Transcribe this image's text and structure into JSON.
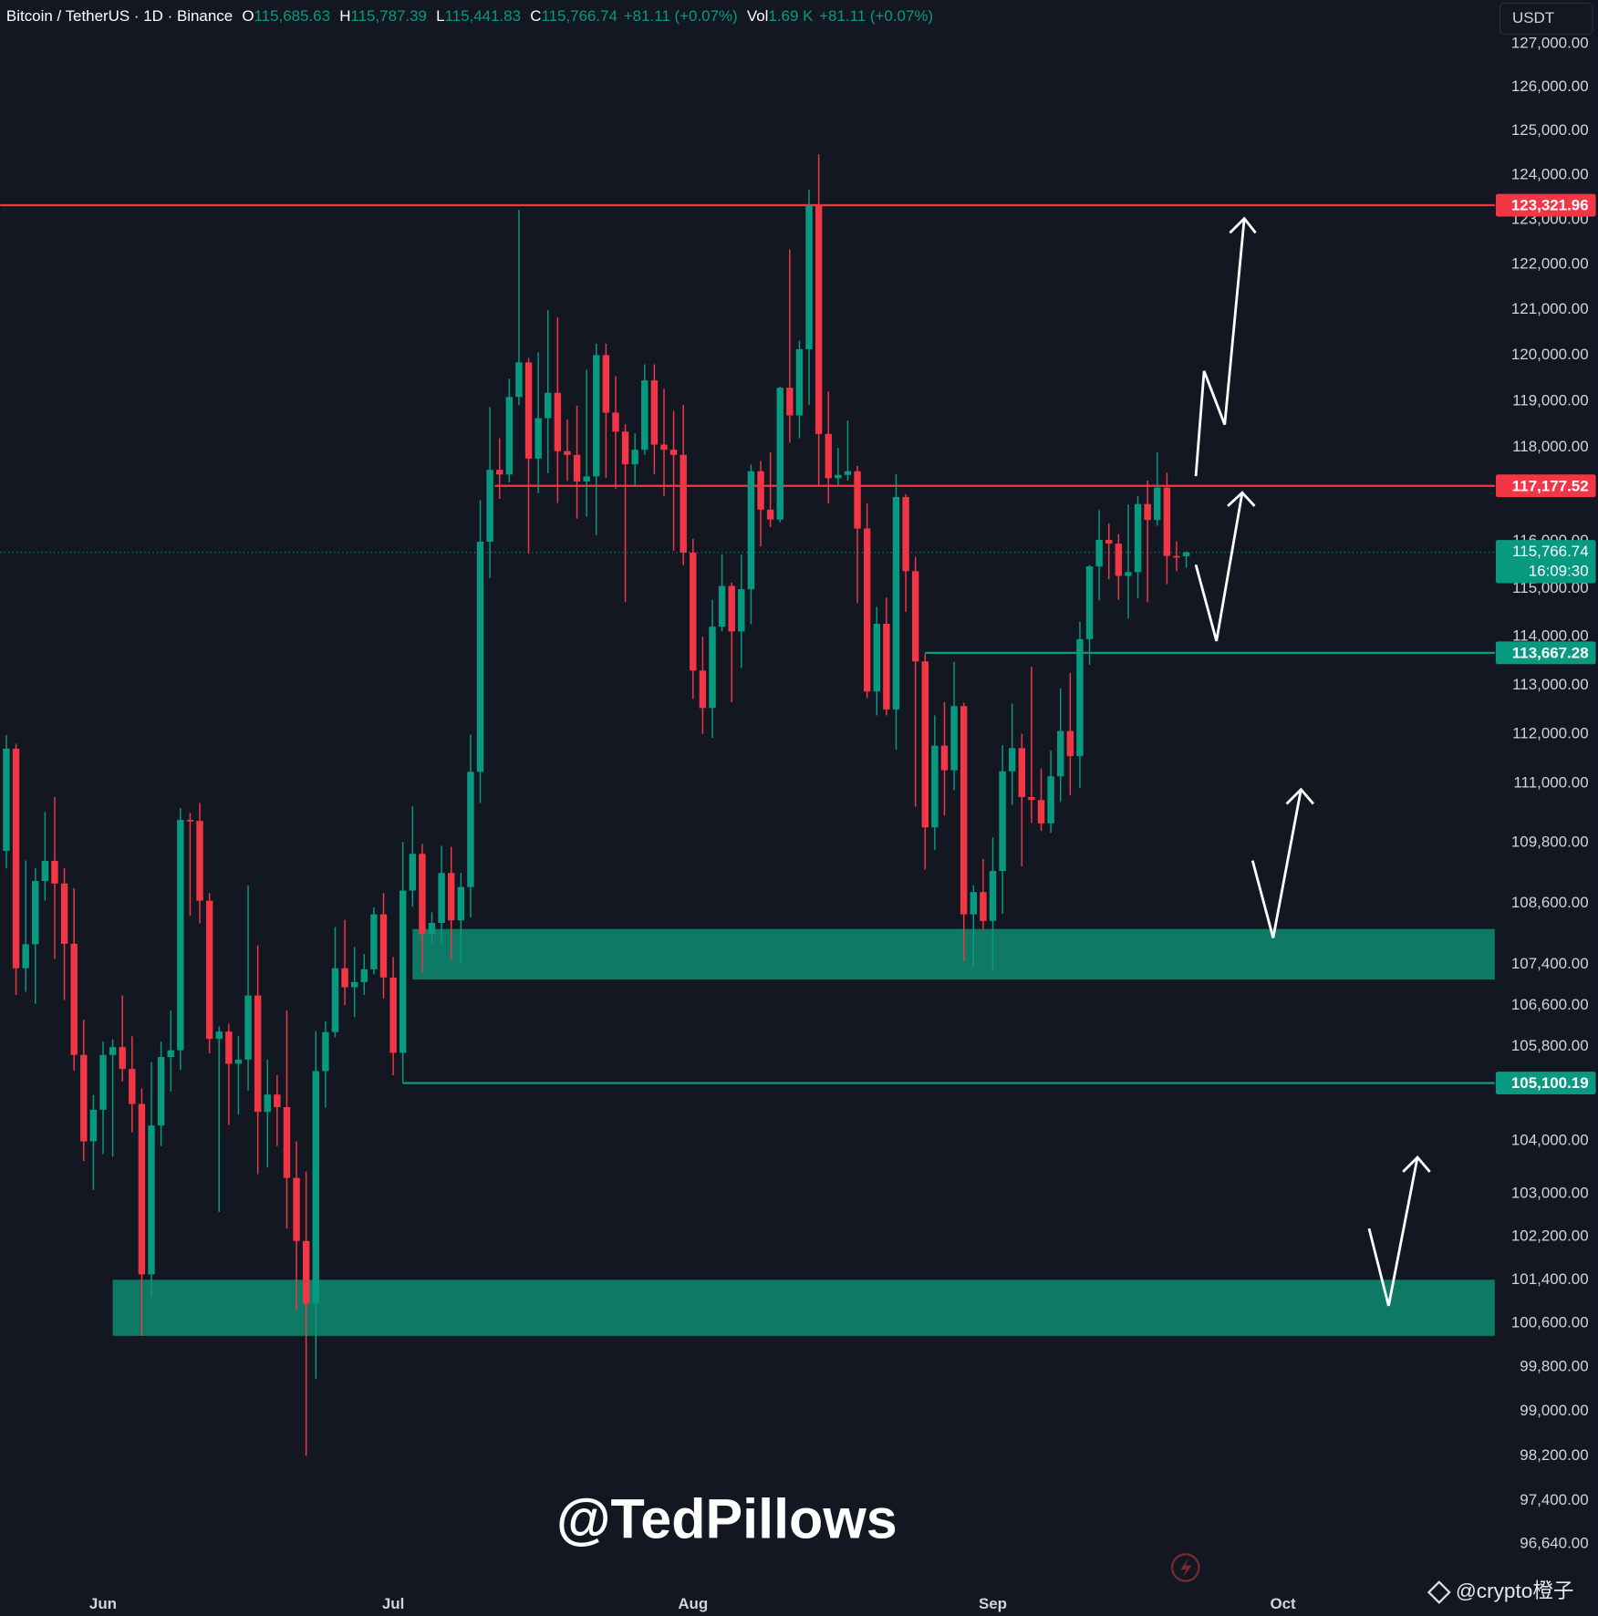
{
  "chart_data": {
    "type": "candlestick",
    "title": "Bitcoin / TetherUS · 1D · Binance",
    "legend": [
      {
        "key": "O",
        "text": "115,685.63"
      },
      {
        "key": "H",
        "text": "115,787.39"
      },
      {
        "key": "L",
        "text": "115,441.83"
      },
      {
        "key": "C",
        "text": "115,766.74"
      }
    ],
    "change": "+81.11 (+0.07%)",
    "volume": {
      "key": "Vol",
      "text": "1.69 K",
      "change": "+81.11 (+0.07%)"
    },
    "currency": "USDT",
    "up_color": "#089981",
    "down_color": "#f23645",
    "log_scale": true,
    "grid": false,
    "open": [
      109640,
      111700,
      107320,
      107790,
      109040,
      109440,
      108990,
      107800,
      105640,
      103990,
      104590,
      105640,
      105790,
      105370,
      104700,
      101500,
      104290,
      105600,
      105730,
      110260,
      110240,
      108650,
      105950,
      106090,
      105470,
      105550,
      106790,
      104550,
      104880,
      104640,
      103300,
      102120,
      100960,
      105330,
      106080,
      107320,
      106950,
      107050,
      107300,
      108380,
      107140,
      105680,
      108850,
      109580,
      107990,
      108210,
      109200,
      108260,
      108920,
      111230,
      115990,
      117520,
      117420,
      119090,
      119840,
      117760,
      118630,
      119180,
      117920,
      117840,
      117270,
      117380,
      120000,
      118750,
      118340,
      117640,
      117950,
      119450,
      118060,
      117950,
      117840,
      115760,
      113300,
      112530,
      114210,
      115060,
      114110,
      114990,
      117490,
      116670,
      116460,
      119290,
      118690,
      120130,
      123310,
      118290,
      117340,
      117410,
      117490,
      116270,
      112870,
      114270,
      112500,
      116940,
      115370,
      113490,
      110110,
      111760,
      111260,
      112570,
      108380,
      108820,
      108250,
      109240,
      111240,
      111710,
      110720,
      110660,
      110190,
      111140,
      112060,
      111550,
      113950,
      115470,
      116030,
      115950,
      115270,
      115350,
      116790,
      116450,
      117140,
      115690,
      115685.63
    ],
    "high": [
      111980,
      111800,
      109450,
      109300,
      110420,
      110720,
      109300,
      108900,
      106320,
      104870,
      105900,
      105940,
      106790,
      106000,
      105000,
      105500,
      105900,
      106500,
      110500,
      110400,
      110600,
      108800,
      106190,
      106240,
      106000,
      108950,
      107770,
      105550,
      105250,
      106500,
      103990,
      103420,
      106100,
      106290,
      108130,
      108270,
      107740,
      107600,
      108520,
      108800,
      107540,
      109820,
      110530,
      109780,
      108420,
      109740,
      109720,
      109200,
      111990,
      116870,
      118870,
      118200,
      119490,
      123220,
      119940,
      120060,
      120990,
      120830,
      118600,
      118900,
      119680,
      120250,
      120250,
      119540,
      118500,
      118300,
      119800,
      119800,
      119270,
      118790,
      118920,
      116050,
      114000,
      114770,
      115720,
      115130,
      115720,
      117630,
      117710,
      117900,
      119310,
      122330,
      120320,
      123670,
      124470,
      119210,
      117990,
      118580,
      117600,
      116800,
      114620,
      114820,
      117420,
      117000,
      115670,
      113650,
      112380,
      112650,
      113480,
      112640,
      108950,
      109480,
      109910,
      111770,
      112620,
      112000,
      113380,
      111300,
      111660,
      112930,
      113250,
      114310,
      115500,
      116660,
      116380,
      116150,
      116780,
      116960,
      117290,
      117900,
      117460,
      116000,
      115787.39
    ],
    "low": [
      109290,
      106800,
      106860,
      106630,
      108650,
      107500,
      106700,
      105340,
      103620,
      103070,
      103750,
      103700,
      105130,
      104160,
      100370,
      101100,
      103900,
      104940,
      105350,
      108350,
      108200,
      105670,
      102660,
      104300,
      104500,
      104960,
      103370,
      103500,
      103900,
      102350,
      100840,
      98200,
      99590,
      104630,
      105980,
      106600,
      106370,
      106800,
      107200,
      106730,
      105250,
      105100,
      108530,
      107250,
      107800,
      107800,
      107500,
      107420,
      108320,
      110600,
      115220,
      116900,
      117250,
      118910,
      115740,
      117020,
      117450,
      116810,
      117280,
      116480,
      116520,
      116130,
      117350,
      117110,
      114720,
      117150,
      117840,
      117430,
      116960,
      115800,
      115500,
      112720,
      112000,
      111920,
      114110,
      112650,
      113350,
      114260,
      115890,
      116300,
      116400,
      118100,
      118200,
      118920,
      117180,
      116800,
      117190,
      117290,
      114700,
      112730,
      112380,
      112380,
      111680,
      114520,
      110530,
      109270,
      109660,
      110350,
      110860,
      107460,
      107350,
      108080,
      107260,
      108390,
      110560,
      109330,
      110200,
      110040,
      110000,
      110620,
      110760,
      110900,
      113420,
      114760,
      115200,
      114770,
      114380,
      114800,
      114720,
      116330,
      115100,
      115370,
      115441.83
    ],
    "close": [
      111700,
      107320,
      107790,
      109040,
      109440,
      108990,
      107800,
      105640,
      103990,
      104590,
      105640,
      105790,
      105370,
      104700,
      101500,
      104290,
      105600,
      105730,
      110260,
      110240,
      108650,
      105950,
      106090,
      105470,
      105550,
      106790,
      104550,
      104880,
      104640,
      103300,
      102120,
      100960,
      105330,
      106080,
      107320,
      106950,
      107050,
      107300,
      108380,
      107140,
      105680,
      108850,
      109580,
      107990,
      108210,
      109200,
      108260,
      108920,
      111230,
      115990,
      117520,
      117420,
      119090,
      119840,
      117760,
      118630,
      119180,
      117920,
      117840,
      117270,
      117380,
      120000,
      118750,
      118340,
      117640,
      117950,
      119450,
      118060,
      117950,
      117840,
      115760,
      113300,
      112530,
      114210,
      115060,
      114110,
      114990,
      117490,
      116670,
      116460,
      119290,
      118690,
      120130,
      123310,
      118290,
      117340,
      117410,
      117490,
      116270,
      112870,
      114270,
      112500,
      116940,
      115370,
      113490,
      110110,
      111760,
      111260,
      112570,
      108380,
      108820,
      108250,
      109240,
      111240,
      111710,
      110720,
      110660,
      110190,
      111140,
      112060,
      111550,
      113950,
      115470,
      116030,
      115950,
      115270,
      115350,
      116790,
      116450,
      117140,
      115690,
      115685.63,
      115766.74
    ],
    "xlim": [
      -0.64,
      153.9
    ],
    "xticks": [
      {
        "value": 10,
        "label": "Jun"
      },
      {
        "value": 40,
        "label": "Jul"
      },
      {
        "value": 71,
        "label": "Aug"
      },
      {
        "value": 102,
        "label": "Sep"
      },
      {
        "value": 132,
        "label": "Oct"
      }
    ],
    "ylim": [
      96060,
      127300
    ],
    "yticks": [
      {
        "value": 127000,
        "label": "127,000.00"
      },
      {
        "value": 126000,
        "label": "126,000.00"
      },
      {
        "value": 125000,
        "label": "125,000.00"
      },
      {
        "value": 124000,
        "label": "124,000.00"
      },
      {
        "value": 123000,
        "label": "123,000.00"
      },
      {
        "value": 122000,
        "label": "122,000.00"
      },
      {
        "value": 121000,
        "label": "121,000.00"
      },
      {
        "value": 120000,
        "label": "120,000.00"
      },
      {
        "value": 119000,
        "label": "119,000.00"
      },
      {
        "value": 118000,
        "label": "118,000.00"
      },
      {
        "value": 116000,
        "label": "116,000.00"
      },
      {
        "value": 115000,
        "label": "115,000.00"
      },
      {
        "value": 114000,
        "label": "114,000.00"
      },
      {
        "value": 113000,
        "label": "113,000.00"
      },
      {
        "value": 112000,
        "label": "112,000.00"
      },
      {
        "value": 111000,
        "label": "111,000.00"
      },
      {
        "value": 109800,
        "label": "109,800.00"
      },
      {
        "value": 108600,
        "label": "108,600.00"
      },
      {
        "value": 107400,
        "label": "107,400.00"
      },
      {
        "value": 106600,
        "label": "106,600.00"
      },
      {
        "value": 105800,
        "label": "105,800.00"
      },
      {
        "value": 104000,
        "label": "104,000.00"
      },
      {
        "value": 103000,
        "label": "103,000.00"
      },
      {
        "value": 102200,
        "label": "102,200.00"
      },
      {
        "value": 101400,
        "label": "101,400.00"
      },
      {
        "value": 100600,
        "label": "100,600.00"
      },
      {
        "value": 99800,
        "label": "99,800.00"
      },
      {
        "value": 99000,
        "label": "99,000.00"
      },
      {
        "value": 98200,
        "label": "98,200.00"
      },
      {
        "value": 97400,
        "label": "97,400.00"
      },
      {
        "value": 96640,
        "label": "96,640.00"
      }
    ],
    "zones": [
      {
        "y0": 107100,
        "y1": 108090,
        "x0": 42,
        "color": "#0e7a66"
      },
      {
        "y0": 100370,
        "y1": 101400,
        "x0": 11,
        "color": "#0e7a66"
      }
    ],
    "price_lines": [
      {
        "value": 123321.96,
        "label": "123,321.96",
        "color": "#f23645"
      },
      {
        "value": 117177.52,
        "label": "117,177.52",
        "color": "#f23645",
        "x0": 50.5
      },
      {
        "value": 113667.28,
        "label": "113,667.28",
        "color": "#089981",
        "x0": 95
      },
      {
        "value": 105100.19,
        "label": "105,100.19",
        "color": "#089981",
        "x0": 41
      }
    ],
    "last_price": {
      "value": 115766.74,
      "label": "115,766.74",
      "countdown": "16:09:30",
      "color": "#089981"
    }
  },
  "overlay": {
    "watermark": "@TedPillows",
    "credit": "@crypto橙子"
  }
}
